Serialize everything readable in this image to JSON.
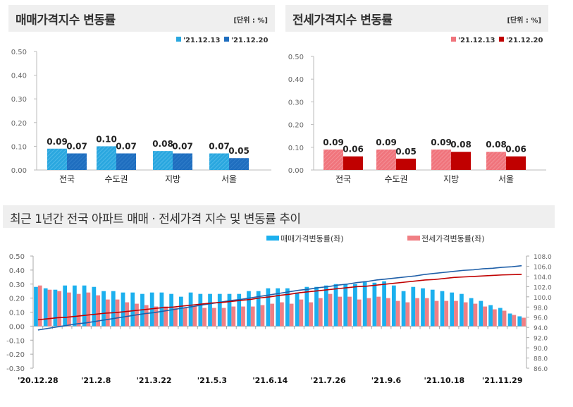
{
  "chart_data": [
    {
      "type": "bar",
      "title": "매매가격지수 변동률",
      "unit": "[단위 : %]",
      "categories": [
        "전국",
        "수도권",
        "지방",
        "서울"
      ],
      "ylim": [
        0,
        0.5
      ],
      "yticks": [
        "0.00",
        "0.10",
        "0.20",
        "0.30",
        "0.40",
        "0.50"
      ],
      "legend_position": "top-right",
      "series": [
        {
          "name": "'21.12.13",
          "values": [
            0.09,
            0.1,
            0.08,
            0.07
          ],
          "color": "#2aa7df"
        },
        {
          "name": "'21.12.20",
          "values": [
            0.07,
            0.07,
            0.07,
            0.05
          ],
          "color": "#1f6ebf"
        }
      ]
    },
    {
      "type": "bar",
      "title": "전세가격지수 변동률",
      "unit": "[단위 : %]",
      "categories": [
        "전국",
        "수도권",
        "지방",
        "서울"
      ],
      "ylim": [
        0,
        0.5
      ],
      "yticks": [
        "0.00",
        "0.10",
        "0.20",
        "0.30",
        "0.40",
        "0.50"
      ],
      "legend_position": "top-right",
      "series": [
        {
          "name": "'21.12.13",
          "values": [
            0.09,
            0.09,
            0.09,
            0.08
          ],
          "color": "#f0747c"
        },
        {
          "name": "'21.12.20",
          "values": [
            0.06,
            0.05,
            0.08,
            0.06
          ],
          "color": "#c00000"
        }
      ]
    },
    {
      "type": "bar+line",
      "title": "최근 1년간 전국 아파트 매매 · 전세가격 지수 및 변동률 추이",
      "x_tick_labels": [
        "'20.12.28",
        "'21.2.8",
        "'21.3.22",
        "'21.5.3",
        "'21.6.14",
        "'21.7.26",
        "'21.9.6",
        "'21.10.18",
        "'21.11.29"
      ],
      "x_tick_every": 6,
      "weeks": 51,
      "ylim_left": [
        -0.3,
        0.5
      ],
      "yticks_left": [
        "-0.30",
        "-0.20",
        "-0.10",
        "0.00",
        "0.10",
        "0.20",
        "0.30",
        "0.40",
        "0.50"
      ],
      "ylim_right": [
        86.0,
        108.0
      ],
      "yticks_right": [
        "86.0",
        "88.0",
        "90.0",
        "92.0",
        "94.0",
        "96.0",
        "98.0",
        "100.0",
        "102.0",
        "104.0",
        "106.0",
        "108.0"
      ],
      "legend_position": "top",
      "bar_series": [
        {
          "name": "매매가격변동률(좌)",
          "color": "#1cb0ee",
          "values": [
            0.28,
            0.27,
            0.26,
            0.29,
            0.29,
            0.29,
            0.28,
            0.25,
            0.25,
            0.24,
            0.24,
            0.23,
            0.24,
            0.24,
            0.23,
            0.21,
            0.24,
            0.23,
            0.23,
            0.23,
            0.23,
            0.23,
            0.25,
            0.25,
            0.27,
            0.27,
            0.27,
            0.24,
            0.28,
            0.28,
            0.29,
            0.3,
            0.3,
            0.3,
            0.32,
            0.31,
            0.32,
            0.29,
            0.25,
            0.28,
            0.27,
            0.26,
            0.25,
            0.24,
            0.23,
            0.2,
            0.18,
            0.15,
            0.13,
            0.09,
            0.07
          ]
        },
        {
          "name": "전세가격변동률(좌)",
          "color": "#f07f84",
          "values": [
            0.29,
            0.26,
            0.25,
            0.24,
            0.23,
            0.24,
            0.22,
            0.19,
            0.19,
            0.17,
            0.16,
            0.15,
            0.14,
            0.14,
            0.13,
            0.13,
            0.14,
            0.13,
            0.13,
            0.13,
            0.14,
            0.14,
            0.14,
            0.15,
            0.16,
            0.17,
            0.16,
            0.19,
            0.17,
            0.2,
            0.23,
            0.21,
            0.21,
            0.19,
            0.2,
            0.21,
            0.2,
            0.18,
            0.17,
            0.2,
            0.2,
            0.18,
            0.18,
            0.18,
            0.17,
            0.16,
            0.14,
            0.12,
            0.11,
            0.08,
            0.06
          ]
        }
      ],
      "line_series": [
        {
          "color": "#1f5fa8",
          "values": [
            93.5,
            93.8,
            94.1,
            94.4,
            94.7,
            94.9,
            95.2,
            95.5,
            95.8,
            96.1,
            96.4,
            96.7,
            96.9,
            97.2,
            97.5,
            97.8,
            98.1,
            98.4,
            98.7,
            99.0,
            99.3,
            99.5,
            99.8,
            100.1,
            100.4,
            100.7,
            101.0,
            101.3,
            101.5,
            101.8,
            102.0,
            102.3,
            102.5,
            102.8,
            103.0,
            103.3,
            103.5,
            103.7,
            103.9,
            104.1,
            104.4,
            104.6,
            104.8,
            105.0,
            105.2,
            105.3,
            105.5,
            105.6,
            105.8,
            105.9,
            106.1
          ]
        },
        {
          "color": "#c00000",
          "values": [
            95.5,
            95.7,
            95.9,
            96.0,
            96.2,
            96.4,
            96.6,
            96.8,
            96.9,
            97.1,
            97.3,
            97.5,
            97.7,
            97.9,
            98.0,
            98.2,
            98.4,
            98.6,
            98.8,
            98.9,
            99.1,
            99.3,
            99.5,
            99.8,
            100.0,
            100.3,
            100.5,
            100.8,
            101.0,
            101.2,
            101.4,
            101.6,
            101.8,
            102.0,
            102.1,
            102.3,
            102.5,
            102.7,
            102.9,
            103.1,
            103.3,
            103.4,
            103.6,
            103.8,
            103.9,
            104.0,
            104.1,
            104.2,
            104.3,
            104.35,
            104.4
          ]
        }
      ]
    }
  ]
}
